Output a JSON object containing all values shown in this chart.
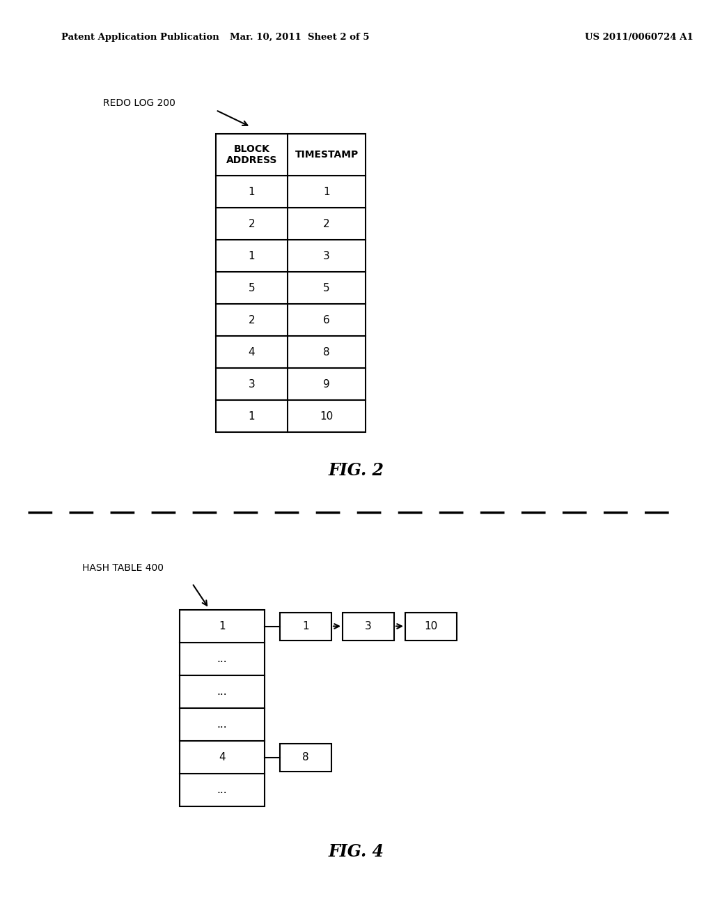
{
  "bg_color": "#ffffff",
  "header_left": "Patent Application Publication",
  "header_mid": "Mar. 10, 2011  Sheet 2 of 5",
  "header_right": "US 2011/0060724 A1",
  "fig2_label": "FIG. 2",
  "fig4_label": "FIG. 4",
  "redo_log_label": "REDO LOG 200",
  "hash_table_label": "HASH TABLE 400",
  "table_col1_header": "BLOCK\nADDRESS",
  "table_col2_header": "TIMESTAMP",
  "table_rows": [
    [
      "1",
      "1"
    ],
    [
      "2",
      "2"
    ],
    [
      "1",
      "3"
    ],
    [
      "5",
      "5"
    ],
    [
      "2",
      "6"
    ],
    [
      "4",
      "8"
    ],
    [
      "3",
      "9"
    ],
    [
      "1",
      "10"
    ]
  ],
  "hash_table_rows": [
    "1",
    "...",
    "...",
    "...",
    "4",
    "..."
  ],
  "hash_row1_chain": [
    "1",
    "3",
    "10"
  ],
  "hash_row4_chain": [
    "8"
  ]
}
